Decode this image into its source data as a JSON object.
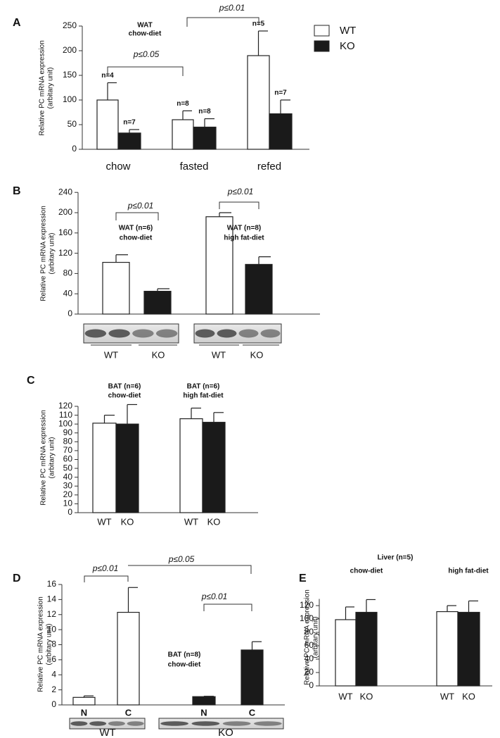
{
  "chart_data": [
    {
      "type": "bar",
      "panel": "A",
      "title": [
        "WAT",
        "chow-diet"
      ],
      "ylabel": [
        "Relative PC mRNA expression",
        "(arbitary unit)"
      ],
      "categories": [
        "chow",
        "fasted",
        "refed"
      ],
      "series": [
        {
          "name": "WT",
          "color": "#ffffff",
          "values": [
            100,
            60,
            190
          ],
          "errors": [
            35,
            18,
            50
          ],
          "n_labels": [
            "n=4",
            "n=8",
            "n=5"
          ]
        },
        {
          "name": "KO",
          "color": "#1a1a1a",
          "values": [
            33,
            45,
            72
          ],
          "errors": [
            7,
            17,
            28
          ],
          "n_labels": [
            "n=7",
            "n=8",
            "n=7"
          ]
        }
      ],
      "ylim": [
        0,
        250
      ],
      "yticks": [
        0,
        50,
        100,
        150,
        200,
        250
      ],
      "brackets": [
        "p≤0.05",
        "p≤0.01"
      ],
      "legend": "top-right"
    },
    {
      "type": "bar",
      "panel": "B",
      "ylabel": [
        "Relative PC mRNA expression",
        "(arbitary unit)"
      ],
      "group_labels": [
        [
          "WAT (n=6)",
          "chow-diet"
        ],
        [
          "WAT (n=8)",
          "high fat-diet"
        ]
      ],
      "series": [
        {
          "name": "WT",
          "color": "#ffffff",
          "values": [
            102,
            192
          ],
          "errors": [
            15,
            8
          ]
        },
        {
          "name": "KO",
          "color": "#1a1a1a",
          "values": [
            45,
            98
          ],
          "errors": [
            5,
            15
          ]
        }
      ],
      "ylim": [
        0,
        240
      ],
      "yticks": [
        0,
        40,
        80,
        120,
        160,
        200,
        240
      ],
      "brackets": [
        "p≤0.01",
        "p≤0.01"
      ]
    },
    {
      "type": "bar",
      "panel": "C",
      "ylabel": [
        "Relative PC mRNA expression",
        "(arbitary unit)"
      ],
      "group_labels": [
        [
          "BAT (n=6)",
          "chow-diet"
        ],
        [
          "BAT (n=6)",
          "high fat-diet"
        ]
      ],
      "series": [
        {
          "name": "WT",
          "color": "#ffffff",
          "values": [
            101,
            106
          ],
          "errors": [
            9,
            12
          ]
        },
        {
          "name": "KO",
          "color": "#1a1a1a",
          "values": [
            100,
            102
          ],
          "errors": [
            22,
            11
          ]
        }
      ],
      "ylim": [
        0,
        120
      ],
      "yticks": [
        0,
        10,
        20,
        30,
        40,
        50,
        60,
        70,
        80,
        90,
        100,
        110,
        120
      ]
    },
    {
      "type": "bar",
      "panel": "D",
      "ylabel": [
        "Relative PC mRNA expression",
        "(arbitary unit)"
      ],
      "categories": [
        "N",
        "C"
      ],
      "group_labels": [
        [
          "BAT (n=8)",
          "chow-diet"
        ]
      ],
      "series": [
        {
          "name": "WT",
          "color": "#ffffff",
          "values": [
            1.0,
            12.3
          ],
          "errors": [
            0.2,
            3.3
          ]
        },
        {
          "name": "KO",
          "color": "#1a1a1a",
          "values": [
            1.1,
            7.3
          ],
          "errors": [
            0.05,
            1.1
          ]
        }
      ],
      "ylim": [
        0,
        16
      ],
      "yticks": [
        0,
        2,
        4,
        6,
        8,
        10,
        12,
        14,
        16
      ],
      "brackets": [
        "p≤0.01",
        "p≤0.05",
        "p≤0.01"
      ]
    },
    {
      "type": "bar",
      "panel": "E",
      "title": "Liver (n=5)",
      "ylabel": [
        "Relative PC mRNA expression",
        "(arbitary unit)"
      ],
      "categories": [
        "chow-diet",
        "high fat-diet"
      ],
      "series": [
        {
          "name": "WT",
          "color": "#ffffff",
          "values": [
            99,
            111
          ],
          "errors": [
            19,
            9
          ]
        },
        {
          "name": "KO",
          "color": "#1a1a1a",
          "values": [
            110,
            110
          ],
          "errors": [
            19,
            17
          ]
        }
      ],
      "ylim": [
        0,
        130
      ],
      "yticks": [
        0,
        20,
        40,
        60,
        80,
        100,
        120
      ]
    }
  ]
}
